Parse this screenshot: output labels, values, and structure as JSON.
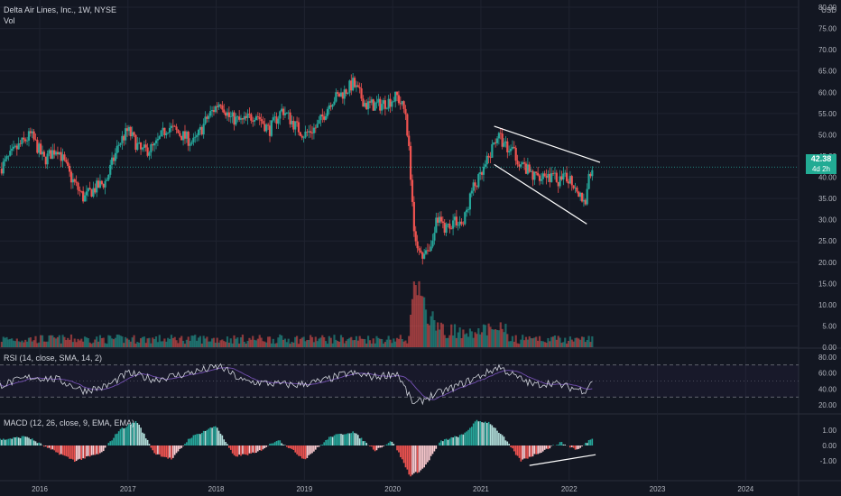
{
  "header": {
    "title": "Delta Air Lines, Inc., 1W, NYSE",
    "vol_label": "Vol",
    "rsi_label": "RSI (14, close, SMA, 14, 2)",
    "macd_label": "MACD (12, 26, close, 9, EMA, EMA)",
    "currency": "USD"
  },
  "last_price": {
    "value": "42.38",
    "countdown": "4d 2h"
  },
  "colors": {
    "background": "#131722",
    "up": "#26a69a",
    "down": "#ef5350",
    "grid": "#1f2330",
    "text": "#b2b5be",
    "price_tag": "#22ab94",
    "rsi_line": "#d1d4dc",
    "rsi_ma": "#7e57c2",
    "trendline": "#ffffff",
    "dotted_price": "#26a69a"
  },
  "chart_data": [
    {
      "type": "candlestick",
      "name": "price",
      "y_ticks": [
        "80.00",
        "75.00",
        "70.00",
        "65.00",
        "60.00",
        "55.00",
        "50.00",
        "45.00",
        "40.00",
        "35.00",
        "30.00",
        "25.00",
        "20.00",
        "15.00",
        "10.00",
        "5.00",
        "0.00"
      ],
      "x_ticks": [
        "2016",
        "2017",
        "2018",
        "2019",
        "2020",
        "2021",
        "2022",
        "2023",
        "2024"
      ],
      "ylim": [
        0,
        80
      ],
      "xlim": [
        2015.55,
        2024.6
      ],
      "series": [
        {
          "t": 2015.55,
          "close": 42
        },
        {
          "t": 2015.75,
          "close": 47
        },
        {
          "t": 2015.9,
          "close": 50
        },
        {
          "t": 2016.05,
          "close": 44
        },
        {
          "t": 2016.2,
          "close": 47
        },
        {
          "t": 2016.35,
          "close": 40
        },
        {
          "t": 2016.5,
          "close": 35
        },
        {
          "t": 2016.6,
          "close": 37
        },
        {
          "t": 2016.75,
          "close": 39
        },
        {
          "t": 2016.9,
          "close": 48
        },
        {
          "t": 2017.0,
          "close": 51
        },
        {
          "t": 2017.15,
          "close": 46
        },
        {
          "t": 2017.3,
          "close": 47
        },
        {
          "t": 2017.45,
          "close": 52
        },
        {
          "t": 2017.6,
          "close": 50
        },
        {
          "t": 2017.75,
          "close": 48
        },
        {
          "t": 2017.9,
          "close": 54
        },
        {
          "t": 2018.05,
          "close": 58
        },
        {
          "t": 2018.15,
          "close": 54
        },
        {
          "t": 2018.3,
          "close": 53
        },
        {
          "t": 2018.45,
          "close": 55
        },
        {
          "t": 2018.6,
          "close": 51
        },
        {
          "t": 2018.75,
          "close": 56
        },
        {
          "t": 2018.9,
          "close": 52
        },
        {
          "t": 2019.0,
          "close": 50
        },
        {
          "t": 2019.15,
          "close": 52
        },
        {
          "t": 2019.3,
          "close": 58
        },
        {
          "t": 2019.45,
          "close": 60
        },
        {
          "t": 2019.55,
          "close": 62
        },
        {
          "t": 2019.7,
          "close": 57
        },
        {
          "t": 2019.85,
          "close": 57
        },
        {
          "t": 2019.97,
          "close": 58
        },
        {
          "t": 2020.05,
          "close": 59
        },
        {
          "t": 2020.15,
          "close": 55
        },
        {
          "t": 2020.2,
          "close": 42
        },
        {
          "t": 2020.25,
          "close": 26
        },
        {
          "t": 2020.3,
          "close": 22
        },
        {
          "t": 2020.35,
          "close": 21
        },
        {
          "t": 2020.45,
          "close": 25
        },
        {
          "t": 2020.5,
          "close": 30
        },
        {
          "t": 2020.6,
          "close": 28
        },
        {
          "t": 2020.7,
          "close": 30
        },
        {
          "t": 2020.8,
          "close": 29
        },
        {
          "t": 2020.9,
          "close": 37
        },
        {
          "t": 2021.0,
          "close": 40
        },
        {
          "t": 2021.1,
          "close": 45
        },
        {
          "t": 2021.18,
          "close": 50
        },
        {
          "t": 2021.3,
          "close": 47
        },
        {
          "t": 2021.4,
          "close": 45
        },
        {
          "t": 2021.5,
          "close": 42
        },
        {
          "t": 2021.6,
          "close": 40
        },
        {
          "t": 2021.7,
          "close": 41
        },
        {
          "t": 2021.8,
          "close": 40
        },
        {
          "t": 2021.9,
          "close": 39
        },
        {
          "t": 2022.0,
          "close": 40
        },
        {
          "t": 2022.1,
          "close": 37
        },
        {
          "t": 2022.18,
          "close": 34
        },
        {
          "t": 2022.22,
          "close": 40
        },
        {
          "t": 2022.28,
          "close": 42.38
        }
      ],
      "trendlines": [
        {
          "from": {
            "t": 2021.15,
            "value": 52
          },
          "to": {
            "t": 2022.35,
            "value": 43.5
          }
        },
        {
          "from": {
            "t": 2021.15,
            "value": 43
          },
          "to": {
            "t": 2022.2,
            "value": 29
          }
        }
      ]
    },
    {
      "type": "bar",
      "name": "volume",
      "y_ticks": [
        "5.00",
        "0.00"
      ],
      "spikes": [
        {
          "t": 2020.25,
          "value": 17
        },
        {
          "t": 2020.3,
          "value": 15
        },
        {
          "t": 2020.35,
          "value": 13
        },
        {
          "t": 2020.45,
          "value": 8
        }
      ]
    },
    {
      "type": "line",
      "name": "rsi",
      "y_ticks": [
        "80.00",
        "60.00",
        "40.00",
        "20.00"
      ],
      "ylim": [
        0,
        100
      ],
      "bands": [
        70,
        30
      ],
      "series": [
        {
          "t": 2015.55,
          "value": 45
        },
        {
          "t": 2015.9,
          "value": 55
        },
        {
          "t": 2016.2,
          "value": 52
        },
        {
          "t": 2016.5,
          "value": 38
        },
        {
          "t": 2016.75,
          "value": 43
        },
        {
          "t": 2017.0,
          "value": 60
        },
        {
          "t": 2017.3,
          "value": 52
        },
        {
          "t": 2017.6,
          "value": 58
        },
        {
          "t": 2017.9,
          "value": 65
        },
        {
          "t": 2018.05,
          "value": 68
        },
        {
          "t": 2018.3,
          "value": 50
        },
        {
          "t": 2018.6,
          "value": 47
        },
        {
          "t": 2018.9,
          "value": 45
        },
        {
          "t": 2019.2,
          "value": 50
        },
        {
          "t": 2019.5,
          "value": 60
        },
        {
          "t": 2019.8,
          "value": 55
        },
        {
          "t": 2020.05,
          "value": 60
        },
        {
          "t": 2020.2,
          "value": 28
        },
        {
          "t": 2020.25,
          "value": 20
        },
        {
          "t": 2020.4,
          "value": 30
        },
        {
          "t": 2020.6,
          "value": 38
        },
        {
          "t": 2020.9,
          "value": 52
        },
        {
          "t": 2021.1,
          "value": 62
        },
        {
          "t": 2021.2,
          "value": 68
        },
        {
          "t": 2021.4,
          "value": 55
        },
        {
          "t": 2021.6,
          "value": 45
        },
        {
          "t": 2021.8,
          "value": 48
        },
        {
          "t": 2022.0,
          "value": 42
        },
        {
          "t": 2022.18,
          "value": 38
        },
        {
          "t": 2022.28,
          "value": 55
        }
      ]
    },
    {
      "type": "histogram",
      "name": "macd",
      "y_ticks": [
        "1.00",
        "0.00",
        "-1.00"
      ],
      "ylim": [
        -2,
        2
      ],
      "series": [
        {
          "t": 2015.6,
          "value": 0.4
        },
        {
          "t": 2015.85,
          "value": 0.6
        },
        {
          "t": 2016.1,
          "value": -0.2
        },
        {
          "t": 2016.4,
          "value": -1.0
        },
        {
          "t": 2016.7,
          "value": -0.5
        },
        {
          "t": 2016.9,
          "value": 1.0
        },
        {
          "t": 2017.1,
          "value": 1.6
        },
        {
          "t": 2017.3,
          "value": -0.5
        },
        {
          "t": 2017.5,
          "value": -0.9
        },
        {
          "t": 2017.7,
          "value": 0.5
        },
        {
          "t": 2018.0,
          "value": 1.3
        },
        {
          "t": 2018.2,
          "value": -0.7
        },
        {
          "t": 2018.45,
          "value": -0.5
        },
        {
          "t": 2018.7,
          "value": 0.4
        },
        {
          "t": 2019.0,
          "value": -0.9
        },
        {
          "t": 2019.3,
          "value": 0.6
        },
        {
          "t": 2019.55,
          "value": 0.9
        },
        {
          "t": 2019.8,
          "value": -0.3
        },
        {
          "t": 2020.0,
          "value": 0.3
        },
        {
          "t": 2020.2,
          "value": -2.0
        },
        {
          "t": 2020.35,
          "value": -1.5
        },
        {
          "t": 2020.55,
          "value": 0.3
        },
        {
          "t": 2020.8,
          "value": 0.7
        },
        {
          "t": 2020.95,
          "value": 1.6
        },
        {
          "t": 2021.1,
          "value": 1.5
        },
        {
          "t": 2021.25,
          "value": 0.6
        },
        {
          "t": 2021.45,
          "value": -1.0
        },
        {
          "t": 2021.65,
          "value": -0.5
        },
        {
          "t": 2021.9,
          "value": 0.2
        },
        {
          "t": 2022.1,
          "value": -0.3
        },
        {
          "t": 2022.28,
          "value": 0.6
        }
      ],
      "trendline": {
        "from": {
          "t": 2021.55,
          "value": -1.3
        },
        "to": {
          "t": 2022.3,
          "value": -0.6
        }
      }
    }
  ]
}
